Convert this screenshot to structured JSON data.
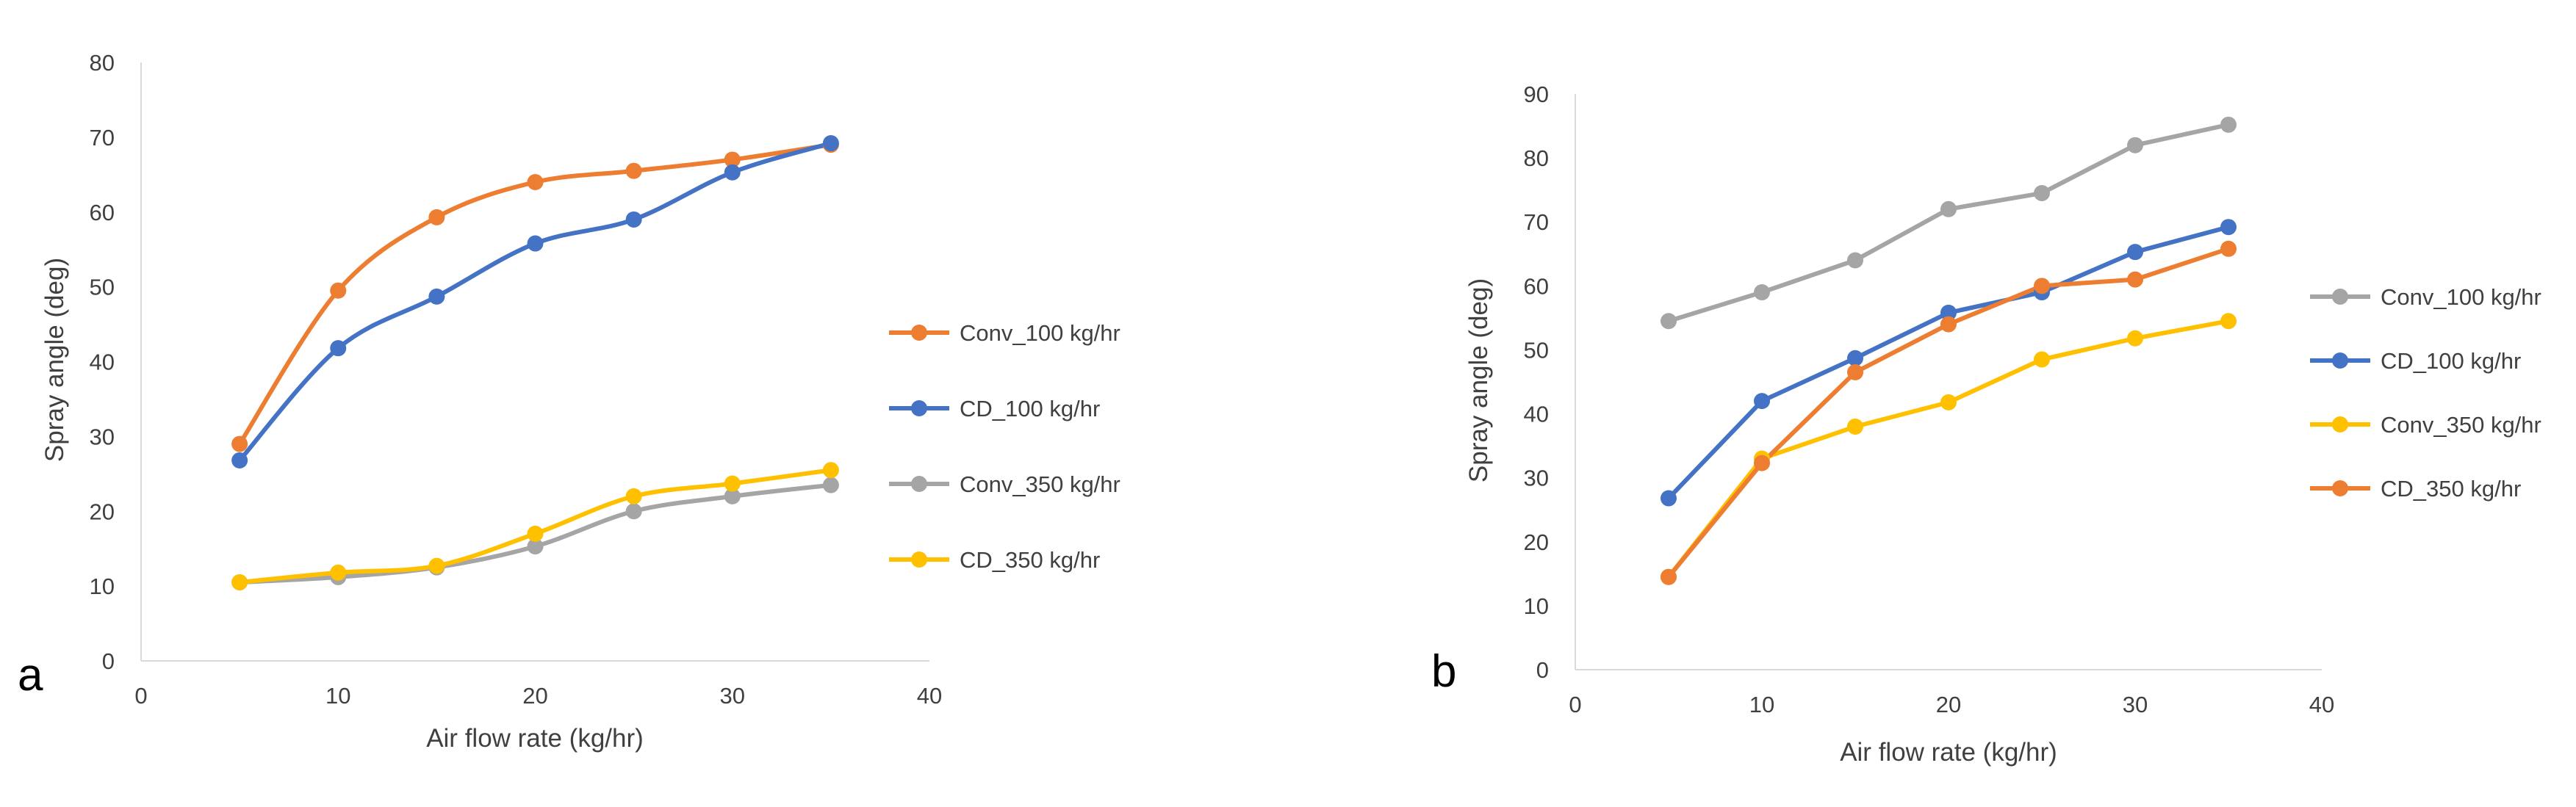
{
  "chart_data": [
    {
      "type": "line",
      "panel_label": "a",
      "title": "",
      "xlabel": "Air flow rate (kg/hr)",
      "ylabel": "Spray angle (deg)",
      "xlim": [
        0,
        40
      ],
      "ylim": [
        0,
        80
      ],
      "x_ticks": [
        0,
        10,
        20,
        30,
        40
      ],
      "y_ticks": [
        0,
        10,
        20,
        30,
        40,
        50,
        60,
        70,
        80
      ],
      "smooth": true,
      "grid": false,
      "legend_position": "right",
      "x": [
        5,
        10,
        15,
        20,
        25,
        30,
        35
      ],
      "series": [
        {
          "name": "Conv_100 kg/hr",
          "color": "#ED7D31",
          "values": [
            29,
            49.5,
            59.3,
            64,
            65.5,
            67,
            69
          ]
        },
        {
          "name": "CD_100 kg/hr",
          "color": "#4472C4",
          "values": [
            26.8,
            41.8,
            48.7,
            55.8,
            59,
            65.3,
            69.2
          ]
        },
        {
          "name": "Conv_350 kg/hr",
          "color": "#A5A5A5",
          "values": [
            10.5,
            11.2,
            12.5,
            15.3,
            20,
            22,
            23.5
          ]
        },
        {
          "name": "CD_350 kg/hr",
          "color": "#FFC000",
          "values": [
            10.5,
            11.8,
            12.7,
            17,
            22,
            23.7,
            25.5
          ]
        }
      ]
    },
    {
      "type": "line",
      "panel_label": "b",
      "title": "",
      "xlabel": "Air flow rate (kg/hr)",
      "ylabel": "Spray angle (deg)",
      "xlim": [
        0,
        40
      ],
      "ylim": [
        0,
        90
      ],
      "x_ticks": [
        0,
        10,
        20,
        30,
        40
      ],
      "y_ticks": [
        0,
        10,
        20,
        30,
        40,
        50,
        60,
        70,
        80,
        90
      ],
      "smooth": false,
      "grid": false,
      "legend_position": "right",
      "x": [
        5,
        10,
        15,
        20,
        25,
        30,
        35
      ],
      "series": [
        {
          "name": "Conv_100 kg/hr",
          "color": "#A5A5A5",
          "values": [
            54.5,
            59,
            64,
            72,
            74.5,
            82,
            85.2
          ]
        },
        {
          "name": "CD_100 kg/hr",
          "color": "#4472C4",
          "values": [
            26.8,
            42,
            48.7,
            55.8,
            59,
            65.3,
            69.2
          ]
        },
        {
          "name": "Conv_350 kg/hr",
          "color": "#FFC000",
          "values": [
            14.5,
            33,
            38,
            41.8,
            48.5,
            51.8,
            54.5
          ]
        },
        {
          "name": "CD_350 kg/hr",
          "color": "#ED7D31",
          "values": [
            14.5,
            32.3,
            46.5,
            54,
            60,
            61,
            65.8
          ]
        }
      ]
    }
  ]
}
